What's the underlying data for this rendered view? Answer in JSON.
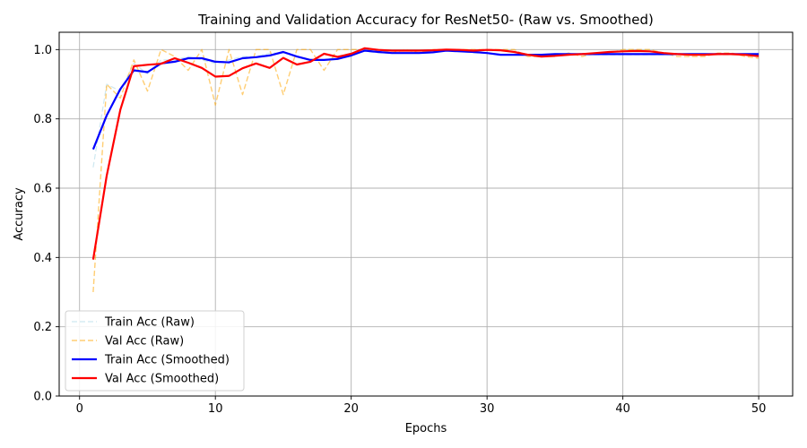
{
  "chart_data": {
    "type": "line",
    "title": "Training and Validation Accuracy for ResNet50- (Raw vs. Smoothed)",
    "xlabel": "Epochs",
    "ylabel": "Accuracy",
    "xlim": [
      -1.5,
      52.5
    ],
    "ylim": [
      0.0,
      1.05
    ],
    "xticks": [
      0,
      10,
      20,
      30,
      40,
      50
    ],
    "yticks": [
      0.0,
      0.2,
      0.4,
      0.6,
      0.8,
      1.0
    ],
    "grid": true,
    "legend_position": "lower-left",
    "x": [
      1,
      2,
      3,
      4,
      5,
      6,
      7,
      8,
      9,
      10,
      11,
      12,
      13,
      14,
      15,
      16,
      17,
      18,
      19,
      20,
      21,
      22,
      23,
      24,
      25,
      26,
      27,
      28,
      29,
      30,
      31,
      32,
      33,
      34,
      35,
      36,
      37,
      38,
      39,
      40,
      41,
      42,
      43,
      44,
      45,
      46,
      47,
      48,
      49,
      50
    ],
    "series": [
      {
        "name": "Train Acc (Raw)",
        "color": "#add8e6",
        "dash": "dashed",
        "width": 1.2,
        "opacity": 0.6,
        "values": [
          0.66,
          0.9,
          0.88,
          0.96,
          0.93,
          0.97,
          0.97,
          0.98,
          0.97,
          0.96,
          0.97,
          0.98,
          0.98,
          0.99,
          0.99,
          0.98,
          0.97,
          0.97,
          0.98,
          0.99,
          0.995,
          0.99,
          0.99,
          0.99,
          0.99,
          0.99,
          1.0,
          0.995,
          0.99,
          0.99,
          0.985,
          0.985,
          0.985,
          0.985,
          0.985,
          0.985,
          0.985,
          0.985,
          0.985,
          0.985,
          0.985,
          0.985,
          0.985,
          0.985,
          0.985,
          0.985,
          0.985,
          0.985,
          0.985,
          0.985
        ]
      },
      {
        "name": "Val Acc (Raw)",
        "color": "#ffa500",
        "dash": "dashed",
        "width": 1.4,
        "opacity": 0.55,
        "values": [
          0.3,
          0.9,
          0.86,
          0.97,
          0.88,
          1.0,
          0.98,
          0.94,
          1.0,
          0.84,
          1.0,
          0.87,
          1.0,
          1.0,
          0.87,
          1.0,
          1.0,
          0.94,
          1.0,
          1.0,
          1.0,
          1.0,
          0.99,
          1.0,
          0.99,
          1.0,
          1.0,
          1.0,
          1.0,
          1.0,
          1.0,
          1.0,
          0.98,
          0.98,
          0.98,
          0.99,
          0.98,
          0.99,
          0.99,
          1.0,
          1.0,
          1.0,
          0.99,
          0.98,
          0.98,
          0.98,
          0.99,
          0.99,
          0.98,
          0.975
        ]
      },
      {
        "name": "Train Acc (Smoothed)",
        "color": "#0000ff",
        "dash": "solid",
        "width": 2.2,
        "opacity": 1,
        "values": [
          0.712,
          0.81,
          0.886,
          0.94,
          0.935,
          0.96,
          0.965,
          0.975,
          0.975,
          0.965,
          0.963,
          0.975,
          0.978,
          0.983,
          0.993,
          0.98,
          0.97,
          0.97,
          0.973,
          0.983,
          0.997,
          0.993,
          0.99,
          0.99,
          0.99,
          0.992,
          0.997,
          0.995,
          0.993,
          0.99,
          0.985,
          0.985,
          0.985,
          0.985,
          0.987,
          0.987,
          0.987,
          0.987,
          0.987,
          0.987,
          0.987,
          0.987,
          0.987,
          0.987,
          0.987,
          0.987,
          0.987,
          0.987,
          0.987,
          0.987
        ]
      },
      {
        "name": "Val Acc (Smoothed)",
        "color": "#ff0000",
        "dash": "solid",
        "width": 2.2,
        "opacity": 1,
        "values": [
          0.394,
          0.636,
          0.826,
          0.952,
          0.956,
          0.959,
          0.975,
          0.962,
          0.947,
          0.922,
          0.924,
          0.946,
          0.96,
          0.947,
          0.976,
          0.957,
          0.965,
          0.988,
          0.979,
          0.988,
          1.004,
          0.999,
          0.997,
          0.997,
          0.997,
          0.998,
          1.0,
          0.999,
          0.997,
          0.999,
          0.998,
          0.993,
          0.985,
          0.98,
          0.982,
          0.985,
          0.987,
          0.99,
          0.993,
          0.995,
          0.996,
          0.995,
          0.99,
          0.987,
          0.985,
          0.985,
          0.987,
          0.987,
          0.985,
          0.981
        ]
      }
    ]
  }
}
